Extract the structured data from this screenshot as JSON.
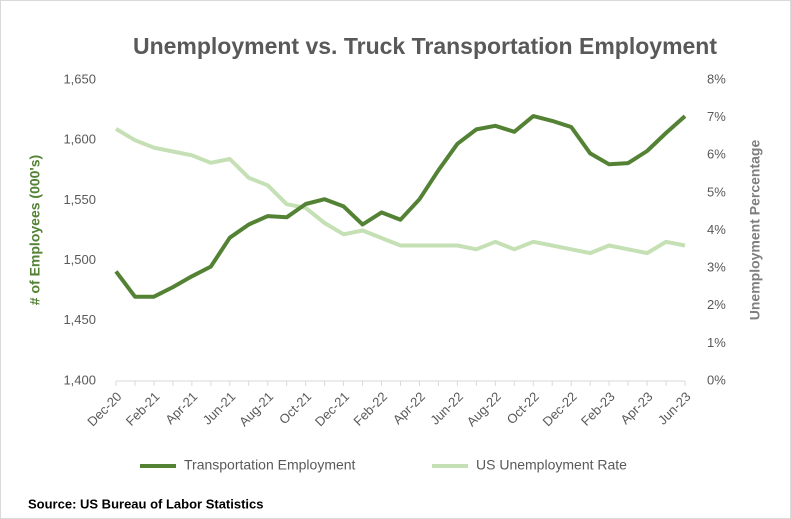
{
  "chart_data": {
    "type": "line",
    "title": "Unemployment vs. Truck Transportation Employment",
    "ylabel": "# of Employees (000's)",
    "y2label": "Unemployment  Percentage",
    "source": "Source: US Bureau of Labor Statistics",
    "categories": [
      "Dec-20",
      null,
      "Feb-21",
      null,
      "Apr-21",
      null,
      "Jun-21",
      null,
      "Aug-21",
      null,
      "Oct-21",
      null,
      "Dec-21",
      null,
      "Feb-22",
      null,
      "Apr-22",
      null,
      "Jun-22",
      null,
      "Aug-22",
      null,
      "Oct-22",
      null,
      "Dec-22",
      null,
      "Feb-23",
      null,
      "Apr-23",
      null,
      "Jun-23"
    ],
    "series": [
      {
        "name": "Transportation Employment",
        "color": "#548235",
        "axis": "y",
        "values": [
          1491,
          1470,
          1470,
          1478,
          1487,
          1495,
          1519,
          1530,
          1537,
          1536,
          1547,
          1551,
          1545,
          1530,
          1540,
          1534,
          1551,
          1575,
          1597,
          1609,
          1612,
          1607,
          1620,
          1616,
          1611,
          1589,
          1580,
          1581,
          1591,
          1606,
          1620
        ]
      },
      {
        "name": "US Unemployment Rate",
        "color": "#c5e0b4",
        "axis": "y2",
        "values": [
          6.7,
          6.4,
          6.2,
          6.1,
          6.0,
          5.8,
          5.9,
          5.4,
          5.2,
          4.7,
          4.6,
          4.2,
          3.9,
          4.0,
          3.8,
          3.6,
          3.6,
          3.6,
          3.6,
          3.5,
          3.7,
          3.5,
          3.7,
          3.6,
          3.5,
          3.4,
          3.6,
          3.5,
          3.4,
          3.7,
          3.6
        ]
      }
    ],
    "ylim": [
      1400,
      1650
    ],
    "yticks": [
      {
        "value": 1400,
        "label": "1,400"
      },
      {
        "value": 1450,
        "label": "1,450"
      },
      {
        "value": 1500,
        "label": "1,500"
      },
      {
        "value": 1550,
        "label": "1,550"
      },
      {
        "value": 1600,
        "label": "1,600"
      },
      {
        "value": 1650,
        "label": "1,650"
      }
    ],
    "y2lim": [
      0,
      8
    ],
    "y2ticks": [
      {
        "value": 0,
        "label": "0%"
      },
      {
        "value": 1,
        "label": "1%"
      },
      {
        "value": 2,
        "label": "2%"
      },
      {
        "value": 3,
        "label": "3%"
      },
      {
        "value": 4,
        "label": "4%"
      },
      {
        "value": 5,
        "label": "5%"
      },
      {
        "value": 6,
        "label": "6%"
      },
      {
        "value": 7,
        "label": "7%"
      },
      {
        "value": 8,
        "label": "8%"
      }
    ],
    "grid": false,
    "legend": "bottom"
  }
}
